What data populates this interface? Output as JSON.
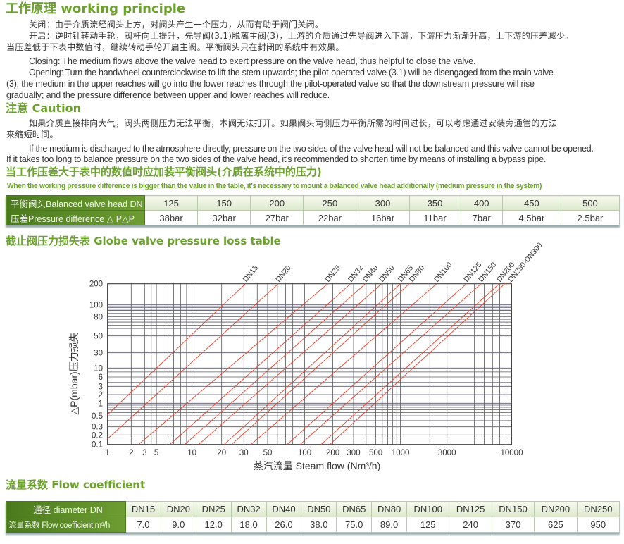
{
  "working": {
    "title": "工作原理 working principle",
    "cn_lines": [
      "关闭：由于介质流经阀头上方，对阀头产生一个压力，从而有助于阀门关闭。",
      "开启：逆时针转动手轮，阀杆向上提升，先导阀(3.1)脱离主阀(3)，上游的介质通过先导阀进入下游，下游压力渐渐升高，上下游的压差减少。",
      "当压差低于下表中数值时，继续转动手轮开启主阀。平衡阀头只在封闭的系统中有效果。"
    ],
    "en_lines": [
      "Closing: The medium flows above the valve head to exert pressure on the valve head, thus helpful to close the valve.",
      "Opening: Turn the handwheel counterclockwise to lift the stem upwards; the pilot-operated valve (3.1) will be disengaged from the main valve",
      "(3); the medium in the upper reaches will go into the lower reaches through the pilot-operated valve so that the downstream pressure will rise",
      "gradually; and the pressure difference between upper and lower reaches will reduce."
    ]
  },
  "caution": {
    "title": "注意 Caution",
    "cn_lines": [
      "如果介质直接排向大气，阀头两侧压力无法平衡，本阀无法打开。如果阀头两侧压力平衡所需的时间过长，可以考虑通过安装旁通管的方法",
      "来缩短时间。"
    ],
    "en_lines": [
      "If the medium is discharged to the atmosphere directly, pressure on the two sides of the valve head will not be balanced and this valve cannot be opened.",
      "If it takes too long to balance pressure on the two sides of the valve head, it's recommended to shorten time by means of installing a bypass pipe."
    ]
  },
  "balanced": {
    "title": "当工作压差大于表中的数值时应加装平衡阀头(介质在系统中的压力)",
    "subtitle": "When the working pressure difference is bigger than the value in the table, it's necessary to mount a balanced valve head additionally (medium pressure in the system)",
    "row1_label": "平衡阀头Balanced valve head  DN",
    "row2_label": "压差Pressure difference △ P△P",
    "dn": [
      "125",
      "150",
      "200",
      "250",
      "300",
      "350",
      "400",
      "450",
      "500"
    ],
    "pressure": [
      "38bar",
      "32bar",
      "27bar",
      "22bar",
      "16bar",
      "11bar",
      "7bar",
      "4.5bar",
      "2.5bar"
    ]
  },
  "loss": {
    "title": "截止阀压力损失表 Globe valve pressure loss table"
  },
  "chart_data": {
    "type": "line",
    "xlabel": "蒸汽流量 Steam flow (Nm³/h)",
    "ylabel": "△P(mbar)压力损失",
    "x_ticks": [
      "1",
      "2",
      "3",
      "5",
      "10",
      "20",
      "30",
      "50",
      "100",
      "200",
      "300",
      "500",
      "1000",
      "3000",
      "10000"
    ],
    "y_ticks": [
      "200",
      "100",
      "80",
      "50",
      "30",
      "10",
      "6",
      "3",
      "2",
      "1",
      "0.5",
      "0.3",
      "0.2",
      "0.1"
    ],
    "xlim": [
      1,
      10000
    ],
    "ylim": [
      0.1,
      200
    ],
    "scale": "log-like (non-uniform)",
    "grid": true,
    "line_color": "#e8402a",
    "series": [
      {
        "name": "DN15",
        "points": [
          [
            1,
            0.53
          ],
          [
            31,
            200
          ]
        ]
      },
      {
        "name": "DN20",
        "points": [
          [
            1,
            0.15
          ],
          [
            61,
            200
          ]
        ]
      },
      {
        "name": "DN25",
        "points": [
          [
            2.5,
            0.1
          ],
          [
            176,
            200
          ]
        ]
      },
      {
        "name": "DN32",
        "points": [
          [
            6.5,
            0.1
          ],
          [
            283,
            200
          ]
        ]
      },
      {
        "name": "DN40",
        "points": [
          [
            8.7,
            0.1
          ],
          [
            393,
            200
          ]
        ]
      },
      {
        "name": "DN50",
        "points": [
          [
            11.7,
            0.1
          ],
          [
            590,
            200
          ]
        ]
      },
      {
        "name": "DN65",
        "points": [
          [
            21,
            0.1
          ],
          [
            1000,
            200
          ]
        ]
      },
      {
        "name": "DN80",
        "points": [
          [
            24,
            0.1
          ],
          [
            1230,
            200
          ]
        ]
      },
      {
        "name": "DN100",
        "points": [
          [
            35,
            0.1
          ],
          [
            2350,
            200
          ]
        ]
      },
      {
        "name": "DN125",
        "points": [
          [
            72,
            0.1
          ],
          [
            4300,
            200
          ]
        ]
      },
      {
        "name": "DN150",
        "points": [
          [
            92,
            0.1
          ],
          [
            5650,
            200
          ]
        ]
      },
      {
        "name": "DN200",
        "points": [
          [
            150,
            0.1
          ],
          [
            7950,
            200
          ]
        ]
      },
      {
        "name": "DN250-DN300",
        "points": [
          [
            186,
            0.1
          ],
          [
            8800,
            200
          ]
        ]
      }
    ]
  },
  "flow": {
    "title": "流量系数 Flow coefficient",
    "row1_label": "通径 diameter DN",
    "row2_label": "流量系数 Flow coefficient m³/h",
    "dn": [
      "DN15",
      "DN20",
      "DN25",
      "DN32",
      "DN40",
      "DN50",
      "DN65",
      "DN80",
      "DN100",
      "DN125",
      "DN150",
      "DN200",
      "DN250"
    ],
    "kv": [
      "7.0",
      "9.0",
      "12.0",
      "18.0",
      "26.0",
      "38.0",
      "75.0",
      "89.0",
      "125",
      "240",
      "370",
      "625",
      "950"
    ]
  }
}
